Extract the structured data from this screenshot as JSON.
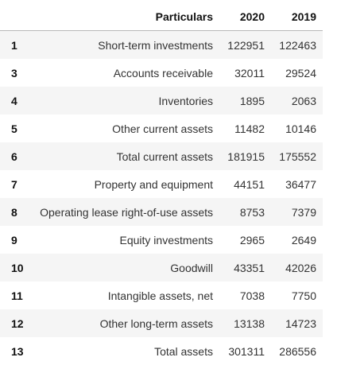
{
  "table": {
    "columns": {
      "index": "",
      "particulars": "Particulars",
      "y2020": "2020",
      "y2019": "2019"
    },
    "rows": [
      {
        "index": "1",
        "particulars": "Short-term investments",
        "y2020": "122951",
        "y2019": "122463"
      },
      {
        "index": "3",
        "particulars": "Accounts receivable",
        "y2020": "32011",
        "y2019": "29524"
      },
      {
        "index": "4",
        "particulars": "Inventories",
        "y2020": "1895",
        "y2019": "2063"
      },
      {
        "index": "5",
        "particulars": "Other current assets",
        "y2020": "11482",
        "y2019": "10146"
      },
      {
        "index": "6",
        "particulars": "Total current assets",
        "y2020": "181915",
        "y2019": "175552"
      },
      {
        "index": "7",
        "particulars": "Property and equipment",
        "y2020": "44151",
        "y2019": "36477"
      },
      {
        "index": "8",
        "particulars": "Operating lease right-of-use assets",
        "y2020": "8753",
        "y2019": "7379"
      },
      {
        "index": "9",
        "particulars": "Equity investments",
        "y2020": "2965",
        "y2019": "2649"
      },
      {
        "index": "10",
        "particulars": "Goodwill",
        "y2020": "43351",
        "y2019": "42026"
      },
      {
        "index": "11",
        "particulars": "Intangible assets, net",
        "y2020": "7038",
        "y2019": "7750"
      },
      {
        "index": "12",
        "particulars": "Other long-term assets",
        "y2020": "13138",
        "y2019": "14723"
      },
      {
        "index": "13",
        "particulars": "Total assets",
        "y2020": "301311",
        "y2019": "286556"
      }
    ]
  }
}
